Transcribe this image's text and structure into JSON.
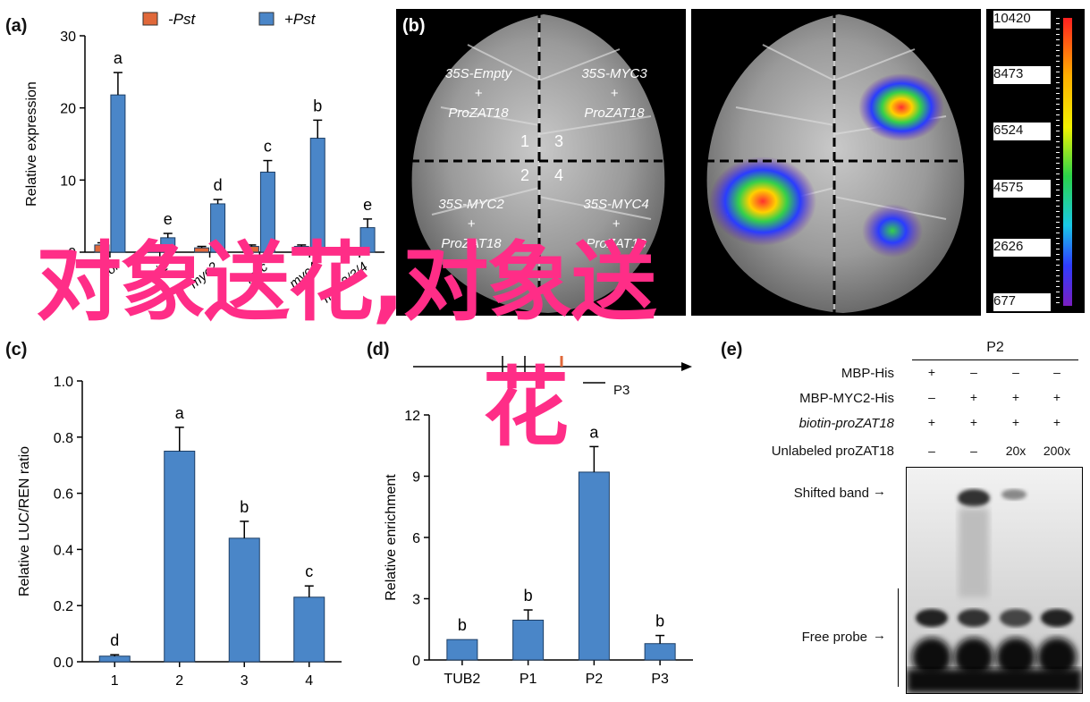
{
  "panel_a": {
    "label": "(a)",
    "legend": [
      {
        "name": "-Pst",
        "color": "#e0683a"
      },
      {
        "name": "+Pst",
        "color": "#4a86c8"
      }
    ]
  },
  "panel_b": {
    "label": "(b)",
    "constructs": {
      "q1": [
        "35S-Empty",
        "+",
        "ProZAT18"
      ],
      "q3": [
        "35S-MYC3",
        "+",
        "ProZAT18"
      ],
      "q2": [
        "35S-MYC2",
        "+",
        "ProZAT18"
      ],
      "q4": [
        "35S-MYC4",
        "+",
        "ProZAT18"
      ]
    },
    "quadrant_numbers": [
      "1",
      "3",
      "2",
      "4"
    ],
    "colorbar_ticks": [
      "10420",
      "8473",
      "6524",
      "4575",
      "2626",
      "677"
    ]
  },
  "panel_c": {
    "label": "(c)"
  },
  "panel_d": {
    "label": "(d)",
    "schematic_label": "P3"
  },
  "panel_e": {
    "label": "(e)",
    "header": "P2",
    "rows": [
      {
        "label": "MBP-His",
        "values": [
          "+",
          "–",
          "–",
          "–"
        ]
      },
      {
        "label": "MBP-MYC2-His",
        "values": [
          "–",
          "+",
          "+",
          "+"
        ]
      },
      {
        "label": "biotin-proZAT18",
        "values": [
          "+",
          "+",
          "+",
          "+"
        ]
      },
      {
        "label": "Unlabeled proZAT18",
        "values": [
          "–",
          "–",
          "20x",
          "200x"
        ]
      }
    ],
    "band_labels": {
      "shifted": "Shifted band",
      "free": "Free probe"
    }
  },
  "overlay_text": {
    "line1": "对象送花,对象送",
    "line2": "花"
  },
  "chart_data": [
    {
      "type": "bar",
      "panel": "a",
      "categories": [
        "COI1",
        "JAZ1",
        "MYC2",
        "MYC3",
        "MYC4",
        "MYC2/3/4"
      ],
      "tick_labels": [
        "coi",
        "oi1",
        "myc2",
        "myc",
        "myc4",
        "myc2/3/4"
      ],
      "series": [
        {
          "name": "-Pst",
          "values": [
            1.0,
            0.3,
            0.6,
            0.8,
            0.8,
            0.3
          ],
          "errors": [
            0.3,
            0.2,
            0.2,
            0.2,
            0.2,
            0.1
          ],
          "color": "#e0683a"
        },
        {
          "name": "+Pst",
          "values": [
            21.8,
            2.0,
            6.7,
            11.1,
            15.8,
            3.4
          ],
          "errors": [
            3.1,
            0.6,
            0.6,
            1.6,
            2.5,
            1.2
          ],
          "color": "#4a86c8"
        }
      ],
      "letters": [
        "a",
        "e",
        "d",
        "c",
        "b",
        "e"
      ],
      "ylabel": "Relative expression",
      "ylim": [
        0,
        30
      ],
      "yticks": [
        0,
        10,
        20,
        30
      ]
    },
    {
      "type": "bar",
      "panel": "c",
      "categories": [
        "1",
        "2",
        "3",
        "4"
      ],
      "values": [
        0.02,
        0.75,
        0.44,
        0.23
      ],
      "errors": [
        0.005,
        0.085,
        0.06,
        0.04
      ],
      "letters": [
        "d",
        "a",
        "b",
        "c"
      ],
      "ylabel": "Relative LUC/REN ratio",
      "ylim": [
        0,
        1.0
      ],
      "yticks": [
        "0.0",
        "0.2",
        "0.4",
        "0.6",
        "0.8",
        "1.0"
      ],
      "color": "#4a86c8"
    },
    {
      "type": "bar",
      "panel": "d",
      "categories": [
        "TUB2",
        "P1",
        "P2",
        "P3"
      ],
      "values": [
        1.0,
        1.95,
        9.2,
        0.8
      ],
      "errors": [
        0,
        0.5,
        1.25,
        0.4
      ],
      "letters": [
        "b",
        "b",
        "a",
        "b"
      ],
      "ylabel": "Relative enrichment",
      "ylim": [
        0,
        12
      ],
      "yticks": [
        0,
        3,
        6,
        9,
        12
      ],
      "color": "#4a86c8"
    }
  ]
}
